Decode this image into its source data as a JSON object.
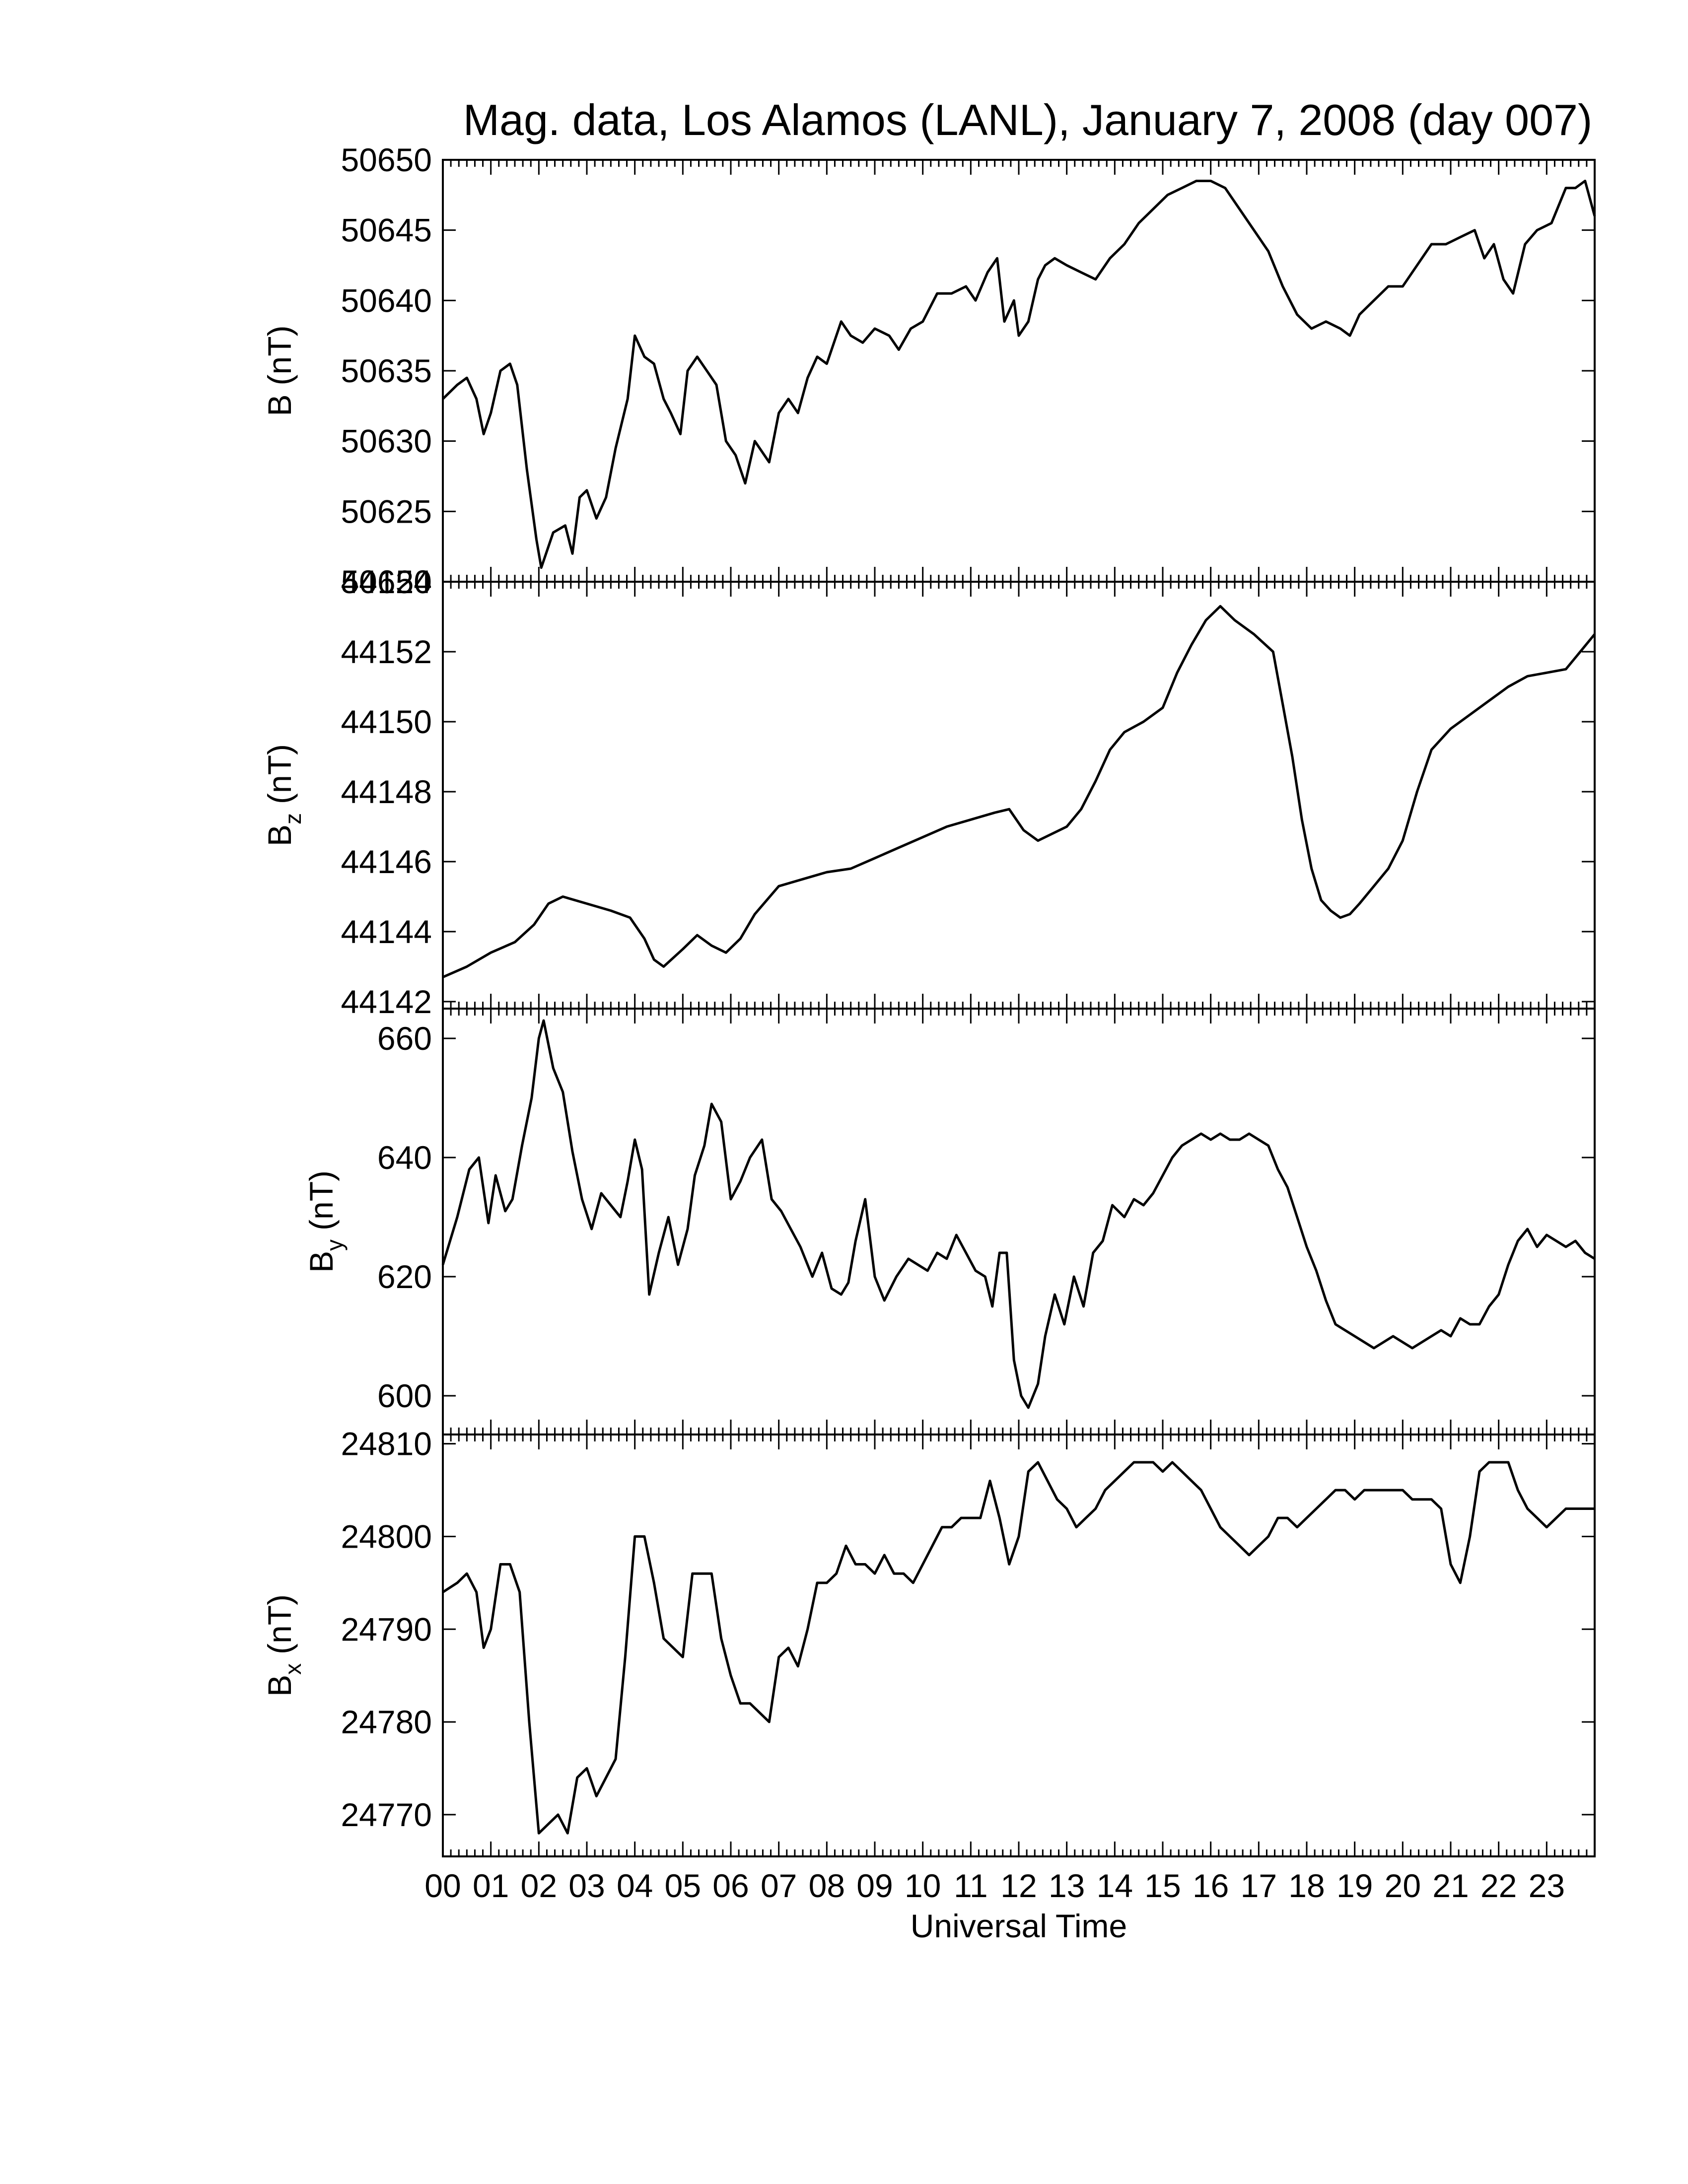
{
  "title": "Mag. data, Los Alamos (LANL), January 7, 2008 (day 007)",
  "xlabel": "Universal Time",
  "chart_data": [
    {
      "type": "line",
      "ylabel_main": "B",
      "ylabel_sub": "",
      "ylabel_unit": "(nT)",
      "ylim": [
        50620,
        50650
      ],
      "yticks": [
        "50620",
        "50625",
        "50630",
        "50635",
        "50640",
        "50645",
        "50650"
      ],
      "xlim": [
        0,
        24
      ],
      "series": [
        {
          "x": [
            0,
            0.3,
            0.5,
            0.7,
            0.85,
            1.0,
            1.2,
            1.4,
            1.55,
            1.75,
            1.95,
            2.05,
            2.3,
            2.55,
            2.7,
            2.85,
            3.0,
            3.2,
            3.4,
            3.6,
            3.85,
            4.0,
            4.2,
            4.4,
            4.6,
            4.75,
            4.95,
            5.1,
            5.3,
            5.5,
            5.7,
            5.9,
            6.1,
            6.3,
            6.5,
            6.8,
            7.0,
            7.2,
            7.4,
            7.6,
            7.8,
            8.0,
            8.3,
            8.5,
            8.75,
            9.0,
            9.3,
            9.5,
            9.75,
            10.0,
            10.3,
            10.6,
            10.9,
            11.1,
            11.35,
            11.55,
            11.7,
            11.9,
            12.0,
            12.2,
            12.4,
            12.55,
            12.75,
            13.0,
            13.3,
            13.6,
            13.9,
            14.2,
            14.5,
            14.8,
            15.1,
            15.4,
            15.7,
            16.0,
            16.3,
            16.6,
            16.9,
            17.2,
            17.5,
            17.8,
            18.1,
            18.4,
            18.7,
            18.9,
            19.1,
            19.4,
            19.7,
            20.0,
            20.3,
            20.6,
            20.9,
            21.2,
            21.5,
            21.7,
            21.9,
            22.1,
            22.3,
            22.55,
            22.8,
            23.1,
            23.4,
            23.6,
            23.8,
            24.0
          ],
          "y": [
            50633,
            50634,
            50634.5,
            50633,
            50630.5,
            50632,
            50635,
            50635.5,
            50634,
            50628,
            50623,
            50621,
            50623.5,
            50624,
            50622,
            50626,
            50626.5,
            50624.5,
            50626,
            50629.5,
            50633,
            50637.5,
            50636,
            50635.5,
            50633,
            50632,
            50630.5,
            50635,
            50636,
            50635,
            50634,
            50630,
            50629,
            50627,
            50630,
            50628.5,
            50632,
            50633,
            50632,
            50634.5,
            50636,
            50635.5,
            50638.5,
            50637.5,
            50637,
            50638,
            50637.5,
            50636.5,
            50638,
            50638.5,
            50640.5,
            50640.5,
            50641,
            50640,
            50642,
            50643,
            50638.5,
            50640,
            50637.5,
            50638.5,
            50641.5,
            50642.5,
            50643,
            50642.5,
            50642,
            50641.5,
            50643,
            50644,
            50645.5,
            50646.5,
            50647.5,
            50648,
            50648.5,
            50648.5,
            50648,
            50646.5,
            50645,
            50643.5,
            50641,
            50639,
            50638,
            50638.5,
            50638,
            50637.5,
            50639,
            50640,
            50641,
            50641,
            50642.5,
            50644,
            50644,
            50644.5,
            50645,
            50643,
            50644,
            50641.5,
            50640.5,
            50644,
            50645,
            50645.5,
            50648,
            50648,
            50648.5,
            50646
          ]
        }
      ]
    },
    {
      "type": "line",
      "ylabel_main": "B",
      "ylabel_sub": "z",
      "ylabel_unit": "(nT)",
      "ylim": [
        44141.8,
        44154
      ],
      "yticks": [
        "44142",
        "44144",
        "44146",
        "44148",
        "44150",
        "44152",
        "44154"
      ],
      "xlim": [
        0,
        24
      ],
      "series": [
        {
          "x": [
            0,
            0.5,
            1.0,
            1.5,
            1.9,
            2.2,
            2.5,
            3.0,
            3.5,
            3.9,
            4.2,
            4.4,
            4.6,
            5.0,
            5.3,
            5.6,
            5.9,
            6.2,
            6.5,
            7.0,
            7.5,
            8.0,
            8.5,
            9.0,
            9.5,
            10.0,
            10.5,
            11.0,
            11.5,
            11.8,
            12.1,
            12.4,
            12.7,
            13.0,
            13.3,
            13.6,
            13.9,
            14.2,
            14.6,
            15.0,
            15.3,
            15.6,
            15.9,
            16.2,
            16.5,
            16.9,
            17.3,
            17.5,
            17.7,
            17.9,
            18.1,
            18.3,
            18.5,
            18.7,
            18.9,
            19.1,
            19.4,
            19.7,
            20.0,
            20.3,
            20.6,
            21.0,
            21.4,
            21.8,
            22.2,
            22.6,
            23.0,
            23.4,
            23.7,
            24.0
          ],
          "y": [
            44142.7,
            44143.0,
            44143.4,
            44143.7,
            44144.2,
            44144.8,
            44145.0,
            44144.8,
            44144.6,
            44144.4,
            44143.8,
            44143.2,
            44143.0,
            44143.5,
            44143.9,
            44143.6,
            44143.4,
            44143.8,
            44144.5,
            44145.3,
            44145.5,
            44145.7,
            44145.8,
            44146.1,
            44146.4,
            44146.7,
            44147.0,
            44147.2,
            44147.4,
            44147.5,
            44146.9,
            44146.6,
            44146.8,
            44147.0,
            44147.5,
            44148.3,
            44149.2,
            44149.7,
            44150.0,
            44150.4,
            44151.4,
            44152.2,
            44152.9,
            44153.3,
            44152.9,
            44152.5,
            44152.0,
            44150.5,
            44149.0,
            44147.2,
            44145.8,
            44144.9,
            44144.6,
            44144.4,
            44144.5,
            44144.8,
            44145.3,
            44145.8,
            44146.6,
            44148.0,
            44149.2,
            44149.8,
            44150.2,
            44150.6,
            44151.0,
            44151.3,
            44151.4,
            44151.5,
            44152.0,
            44152.5
          ]
        }
      ]
    },
    {
      "type": "line",
      "ylabel_main": "B",
      "ylabel_sub": "y",
      "ylabel_unit": "(nT)",
      "ylim": [
        593.5,
        665
      ],
      "yticks": [
        "600",
        "620",
        "640",
        "660"
      ],
      "xlim": [
        0,
        24
      ],
      "series": [
        {
          "x": [
            0,
            0.3,
            0.55,
            0.75,
            0.95,
            1.1,
            1.3,
            1.45,
            1.65,
            1.85,
            2.0,
            2.1,
            2.3,
            2.5,
            2.7,
            2.9,
            3.1,
            3.3,
            3.5,
            3.7,
            3.85,
            4.0,
            4.15,
            4.3,
            4.5,
            4.7,
            4.9,
            5.1,
            5.25,
            5.45,
            5.6,
            5.8,
            6.0,
            6.2,
            6.4,
            6.65,
            6.85,
            7.05,
            7.25,
            7.45,
            7.7,
            7.9,
            8.1,
            8.3,
            8.45,
            8.6,
            8.8,
            9.0,
            9.2,
            9.45,
            9.7,
            9.9,
            10.1,
            10.3,
            10.5,
            10.7,
            10.9,
            11.1,
            11.3,
            11.45,
            11.6,
            11.75,
            11.9,
            12.05,
            12.2,
            12.4,
            12.55,
            12.75,
            12.95,
            13.15,
            13.35,
            13.55,
            13.75,
            13.95,
            14.2,
            14.4,
            14.6,
            14.8,
            15.0,
            15.2,
            15.4,
            15.6,
            15.8,
            16.0,
            16.2,
            16.4,
            16.6,
            16.8,
            17.0,
            17.2,
            17.4,
            17.6,
            17.8,
            18.0,
            18.2,
            18.4,
            18.6,
            18.8,
            19.0,
            19.2,
            19.4,
            19.6,
            19.8,
            20.0,
            20.2,
            20.4,
            20.6,
            20.8,
            21.0,
            21.2,
            21.4,
            21.6,
            21.8,
            22.0,
            22.2,
            22.4,
            22.6,
            22.8,
            23.0,
            23.2,
            23.4,
            23.6,
            23.8,
            24.0
          ],
          "y": [
            622,
            630,
            638,
            640,
            629,
            637,
            631,
            633,
            642,
            650,
            660,
            663,
            655,
            651,
            641,
            633,
            628,
            634,
            632,
            630,
            636,
            643,
            638,
            617,
            624,
            630,
            622,
            628,
            637,
            642,
            649,
            646,
            633,
            636,
            640,
            643,
            633,
            631,
            628,
            625,
            620,
            624,
            618,
            617,
            619,
            626,
            633,
            620,
            616,
            620,
            623,
            622,
            621,
            624,
            623,
            627,
            624,
            621,
            620,
            615,
            624,
            624,
            606,
            600,
            598,
            602,
            610,
            617,
            612,
            620,
            615,
            624,
            626,
            632,
            630,
            633,
            632,
            634,
            637,
            640,
            642,
            643,
            644,
            643,
            644,
            643,
            643,
            644,
            643,
            642,
            638,
            635,
            630,
            625,
            621,
            616,
            612,
            611,
            610,
            609,
            608,
            609,
            610,
            609,
            608,
            609,
            610,
            611,
            610,
            613,
            612,
            612,
            615,
            617,
            622,
            626,
            628,
            625,
            627,
            626,
            625,
            626,
            624,
            623
          ]
        }
      ]
    },
    {
      "type": "line",
      "ylabel_main": "B",
      "ylabel_sub": "x",
      "ylabel_unit": "(nT)",
      "ylim": [
        24765.5,
        24811
      ],
      "yticks": [
        "24770",
        "24780",
        "24790",
        "24800",
        "24810"
      ],
      "xlim": [
        0,
        24
      ],
      "series": [
        {
          "x": [
            0,
            0.3,
            0.5,
            0.7,
            0.85,
            1.0,
            1.2,
            1.4,
            1.6,
            1.8,
            2.0,
            2.2,
            2.4,
            2.6,
            2.8,
            3.0,
            3.2,
            3.4,
            3.6,
            3.8,
            4.0,
            4.2,
            4.4,
            4.6,
            4.8,
            5.0,
            5.2,
            5.4,
            5.6,
            5.8,
            6.0,
            6.2,
            6.4,
            6.6,
            6.8,
            7.0,
            7.2,
            7.4,
            7.6,
            7.8,
            8.0,
            8.2,
            8.4,
            8.6,
            8.8,
            9.0,
            9.2,
            9.4,
            9.6,
            9.8,
            10.0,
            10.2,
            10.4,
            10.6,
            10.8,
            11.0,
            11.2,
            11.4,
            11.6,
            11.8,
            12.0,
            12.2,
            12.4,
            12.6,
            12.8,
            13.0,
            13.2,
            13.4,
            13.6,
            13.8,
            14.0,
            14.2,
            14.4,
            14.6,
            14.8,
            15.0,
            15.2,
            15.4,
            15.6,
            15.8,
            16.0,
            16.2,
            16.4,
            16.6,
            16.8,
            17.0,
            17.2,
            17.4,
            17.6,
            17.8,
            18.0,
            18.2,
            18.4,
            18.6,
            18.8,
            19.0,
            19.2,
            19.4,
            19.6,
            19.8,
            20.0,
            20.2,
            20.4,
            20.6,
            20.8,
            21.0,
            21.2,
            21.4,
            21.6,
            21.8,
            22.0,
            22.2,
            22.4,
            22.6,
            22.8,
            23.0,
            23.2,
            23.4,
            23.6,
            23.8,
            24.0
          ],
          "y": [
            24794,
            24795,
            24796,
            24794,
            24788,
            24790,
            24797,
            24797,
            24794,
            24780,
            24768,
            24769,
            24770,
            24768,
            24774,
            24775,
            24772,
            24774,
            24776,
            24787,
            24800,
            24800,
            24795,
            24789,
            24788,
            24787,
            24796,
            24796,
            24796,
            24789,
            24785,
            24782,
            24782,
            24781,
            24780,
            24787,
            24788,
            24786,
            24790,
            24795,
            24795,
            24796,
            24799,
            24797,
            24797,
            24796,
            24798,
            24796,
            24796,
            24795,
            24797,
            24799,
            24801,
            24801,
            24802,
            24802,
            24802,
            24806,
            24802,
            24797,
            24800,
            24807,
            24808,
            24806,
            24804,
            24803,
            24801,
            24802,
            24803,
            24805,
            24806,
            24807,
            24808,
            24808,
            24808,
            24807,
            24808,
            24807,
            24806,
            24805,
            24803,
            24801,
            24800,
            24799,
            24798,
            24799,
            24800,
            24802,
            24802,
            24801,
            24802,
            24803,
            24804,
            24805,
            24805,
            24804,
            24805,
            24805,
            24805,
            24805,
            24805,
            24804,
            24804,
            24804,
            24803,
            24797,
            24795,
            24800,
            24807,
            24808,
            24808,
            24808,
            24805,
            24803,
            24802,
            24801,
            24802,
            24803,
            24803,
            24803,
            24803
          ]
        }
      ]
    }
  ],
  "xticks": [
    "00",
    "01",
    "02",
    "03",
    "04",
    "05",
    "06",
    "07",
    "08",
    "09",
    "10",
    "11",
    "12",
    "13",
    "14",
    "15",
    "16",
    "17",
    "18",
    "19",
    "20",
    "21",
    "22",
    "23"
  ]
}
